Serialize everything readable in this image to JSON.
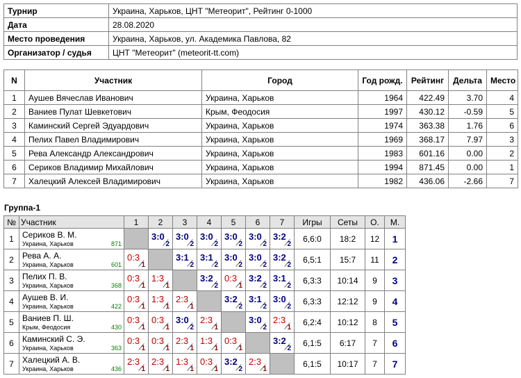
{
  "info": [
    {
      "label": "Турнир",
      "value": "Украина, Харьков, ЦНТ \"Метеорит\", Рейтинг 0-1000"
    },
    {
      "label": "Дата",
      "value": "28.08.2020"
    },
    {
      "label": "Место проведения",
      "value": "Украина, Харьков, ул. Академика Павлова, 82"
    },
    {
      "label": "Организатор / судья",
      "value": "ЦНТ \"Метеорит\" (meteorit-tt.com)"
    }
  ],
  "participants": {
    "headers": [
      "N",
      "Участник",
      "Город",
      "Год рожд.",
      "Рейтинг",
      "Дельта",
      "Место"
    ],
    "rows": [
      [
        1,
        "Аушев Вячеслав Иванович",
        "Украина, Харьков",
        1964,
        "422.49",
        "3.70",
        4
      ],
      [
        2,
        "Ваниев Пулат Шевкетович",
        "Крым, Феодосия",
        1997,
        "430.12",
        "-0.59",
        5
      ],
      [
        3,
        "Каминский Сергей Эдуардович",
        "Украина, Харьков",
        1974,
        "363.38",
        "1.76",
        6
      ],
      [
        4,
        "Пелих Павел Владимирович",
        "Украина, Харьков",
        1969,
        "368.17",
        "7.97",
        3
      ],
      [
        5,
        "Рева Александр Александрович",
        "Украина, Харьков",
        1983,
        "601.16",
        "0.00",
        2
      ],
      [
        6,
        "Сериков Владимир Михайлович",
        "Украина, Харьков",
        1994,
        "871.45",
        "0.00",
        1
      ],
      [
        7,
        "Халецкий Алексей Владимирович",
        "Украина, Харьков",
        1982,
        "436.06",
        "-2.66",
        7
      ]
    ]
  },
  "group": {
    "title": "Группа-1",
    "headers": [
      "№",
      "Участник",
      "1",
      "2",
      "3",
      "4",
      "5",
      "6",
      "7",
      "Игры",
      "Сеты",
      "О.",
      "М."
    ],
    "rows": [
      {
        "n": 1,
        "name": "Сериков В. М.",
        "city": "Украина, Харьков",
        "rating": 871,
        "cells": [
          null,
          {
            "score": "3:0",
            "points": 2
          },
          {
            "score": "3:0",
            "points": 2
          },
          {
            "score": "3:0",
            "points": 2
          },
          {
            "score": "3:0",
            "points": 2
          },
          {
            "score": "3:0",
            "points": 2
          },
          {
            "score": "3:2",
            "points": 2
          }
        ],
        "games": "6,6:0",
        "sets": "18:2",
        "points": 12,
        "place": 1
      },
      {
        "n": 2,
        "name": "Рева А. А.",
        "city": "Украина, Харьков",
        "rating": 601,
        "cells": [
          {
            "score": "0:3",
            "points": 1
          },
          null,
          {
            "score": "3:1",
            "points": 2
          },
          {
            "score": "3:1",
            "points": 2
          },
          {
            "score": "3:0",
            "points": 2
          },
          {
            "score": "3:0",
            "points": 2
          },
          {
            "score": "3:2",
            "points": 2
          }
        ],
        "games": "6,5:1",
        "sets": "15:7",
        "points": 11,
        "place": 2
      },
      {
        "n": 3,
        "name": "Пелих П. В.",
        "city": "Украина, Харьков",
        "rating": 368,
        "cells": [
          {
            "score": "0:3",
            "points": 1
          },
          {
            "score": "1:3",
            "points": 1
          },
          null,
          {
            "score": "3:2",
            "points": 2
          },
          {
            "score": "0:3",
            "points": 1
          },
          {
            "score": "3:2",
            "points": 2
          },
          {
            "score": "3:1",
            "points": 2
          }
        ],
        "games": "6,3:3",
        "sets": "10:14",
        "points": 9,
        "place": 3
      },
      {
        "n": 4,
        "name": "Аушев В. И.",
        "city": "Украина, Харьков",
        "rating": 422,
        "cells": [
          {
            "score": "0:3",
            "points": 1
          },
          {
            "score": "1:3",
            "points": 1
          },
          {
            "score": "2:3",
            "points": 1
          },
          null,
          {
            "score": "3:2",
            "points": 2
          },
          {
            "score": "3:1",
            "points": 2
          },
          {
            "score": "3:0",
            "points": 2
          }
        ],
        "games": "6,3:3",
        "sets": "12:12",
        "points": 9,
        "place": 4
      },
      {
        "n": 5,
        "name": "Ваниев П. Ш.",
        "city": "Крым, Феодосия",
        "rating": 430,
        "cells": [
          {
            "score": "0:3",
            "points": 1
          },
          {
            "score": "0:3",
            "points": 1
          },
          {
            "score": "3:0",
            "points": 2
          },
          {
            "score": "2:3",
            "points": 1
          },
          null,
          {
            "score": "3:0",
            "points": 2
          },
          {
            "score": "2:3",
            "points": 1
          }
        ],
        "games": "6,2:4",
        "sets": "10:12",
        "points": 8,
        "place": 5
      },
      {
        "n": 6,
        "name": "Каминский С. Э.",
        "city": "Украина, Харьков",
        "rating": 363,
        "cells": [
          {
            "score": "0:3",
            "points": 1
          },
          {
            "score": "0:3",
            "points": 1
          },
          {
            "score": "2:3",
            "points": 1
          },
          {
            "score": "1:3",
            "points": 1
          },
          {
            "score": "0:3",
            "points": 1
          },
          null,
          {
            "score": "3:2",
            "points": 2
          }
        ],
        "games": "6,1:5",
        "sets": "6:17",
        "points": 7,
        "place": 6
      },
      {
        "n": 7,
        "name": "Халецкий А. В.",
        "city": "Украина, Харьков",
        "rating": 436,
        "cells": [
          {
            "score": "2:3",
            "points": 1
          },
          {
            "score": "2:3",
            "points": 1
          },
          {
            "score": "1:3",
            "points": 1
          },
          {
            "score": "0:3",
            "points": 1
          },
          {
            "score": "3:2",
            "points": 2
          },
          {
            "score": "2:3",
            "points": 1
          },
          null
        ],
        "games": "6,1:5",
        "sets": "10:17",
        "points": 7,
        "place": 7
      }
    ]
  }
}
